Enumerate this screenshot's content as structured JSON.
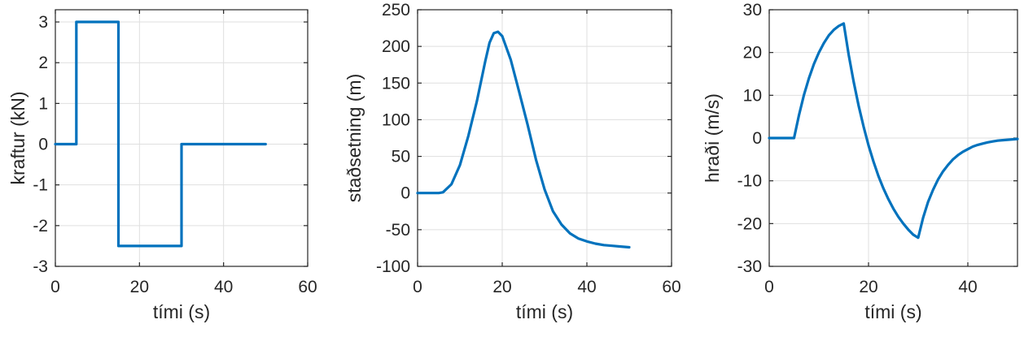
{
  "chart_data": [
    {
      "type": "line",
      "xlabel": "tími (s)",
      "ylabel": "kraftur (kN)",
      "xlim": [
        0,
        60
      ],
      "ylim": [
        -3,
        3.3
      ],
      "xticks": [
        0,
        20,
        40,
        60
      ],
      "yticks": [
        -3,
        -2,
        -1,
        0,
        1,
        2,
        3
      ],
      "xtick_labels": [
        "0",
        "20",
        "40",
        "60"
      ],
      "ytick_labels": [
        "-3",
        "-2",
        "-1",
        "0",
        "1",
        "2",
        "3"
      ],
      "grid": true,
      "color": "#0072BD",
      "series": [
        {
          "x": [
            0,
            5,
            5,
            15,
            15,
            30,
            30,
            50
          ],
          "y": [
            0,
            0,
            3,
            3,
            -2.5,
            -2.5,
            0,
            0
          ]
        }
      ]
    },
    {
      "type": "line",
      "xlabel": "tími (s)",
      "ylabel": "staðsetning (m)",
      "xlim": [
        0,
        60
      ],
      "ylim": [
        -100,
        250
      ],
      "xticks": [
        0,
        20,
        40,
        60
      ],
      "yticks": [
        -100,
        -50,
        0,
        50,
        100,
        150,
        200,
        250
      ],
      "xtick_labels": [
        "0",
        "20",
        "40",
        "60"
      ],
      "ytick_labels": [
        "-100",
        "-50",
        "0",
        "50",
        "100",
        "150",
        "200",
        "250"
      ],
      "grid": true,
      "color": "#0072BD",
      "series": [
        {
          "x": [
            0,
            5,
            6,
            8,
            10,
            12,
            14,
            16,
            17,
            18,
            19,
            20,
            22,
            24,
            26,
            28,
            30,
            32,
            34,
            36,
            38,
            40,
            42,
            44,
            46,
            48,
            50
          ],
          "y": [
            0,
            0,
            1,
            12,
            38,
            78,
            125,
            180,
            205,
            218,
            220,
            214,
            182,
            138,
            93,
            45,
            5,
            -25,
            -43,
            -55,
            -62,
            -66,
            -69,
            -71,
            -72,
            -73,
            -74
          ]
        }
      ]
    },
    {
      "type": "line",
      "xlabel": "tími (s)",
      "ylabel": "hraði (m/s)",
      "xlim": [
        0,
        50
      ],
      "ylim": [
        -30,
        30
      ],
      "xticks": [
        0,
        20,
        40
      ],
      "yticks": [
        -30,
        -20,
        -10,
        0,
        10,
        20,
        30
      ],
      "xtick_labels": [
        "0",
        "20",
        "40"
      ],
      "ytick_labels": [
        "-30",
        "-20",
        "-10",
        "0",
        "10",
        "20",
        "30"
      ],
      "grid": true,
      "color": "#0072BD",
      "series": [
        {
          "x": [
            0,
            5,
            6,
            7,
            8,
            9,
            10,
            11,
            12,
            13,
            14,
            15,
            16,
            17,
            18,
            19,
            20,
            21,
            22,
            23,
            24,
            25,
            26,
            27,
            28,
            29,
            30,
            31,
            32,
            33,
            34,
            35,
            36,
            37,
            38,
            39,
            40,
            41,
            42,
            43,
            44,
            45,
            46,
            47,
            48,
            49,
            50
          ],
          "y": [
            0,
            0,
            5.4,
            10.1,
            14,
            17.3,
            20,
            22.2,
            24,
            25.3,
            26.2,
            26.8,
            19.5,
            13.2,
            7.6,
            2.7,
            -1.7,
            -5.5,
            -8.9,
            -11.8,
            -14.3,
            -16.5,
            -18.4,
            -20,
            -21.4,
            -22.6,
            -23.3,
            -18.6,
            -14.9,
            -12.1,
            -9.7,
            -7.8,
            -6.3,
            -5,
            -4,
            -3.2,
            -2.6,
            -2,
            -1.6,
            -1.3,
            -1,
            -0.8,
            -0.6,
            -0.5,
            -0.4,
            -0.3,
            -0.2
          ]
        }
      ]
    }
  ]
}
